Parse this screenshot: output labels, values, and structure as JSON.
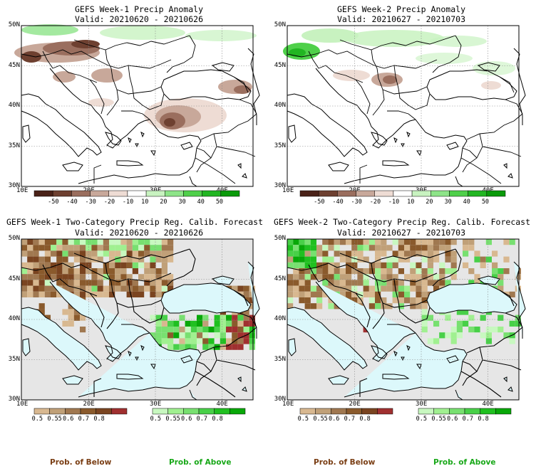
{
  "panels": [
    {
      "line1": "GEFS Week-1 Precip Anomaly",
      "line2": "Valid: 20210620 - 20210626"
    },
    {
      "line1": "GEFS Week-2 Precip Anomaly",
      "line2": "Valid: 20210627 - 20210703"
    },
    {
      "line1": "GEFS Week-1 Two-Category Precip Reg. Calib. Forecast",
      "line2": "Valid: 20210620 - 20210626"
    },
    {
      "line1": "GEFS Week-2 Two-Category Precip Reg. Calib. Forecast",
      "line2": "Valid: 20210627 - 20210703"
    }
  ],
  "lat_labels": [
    "50N",
    "45N",
    "40N",
    "35N",
    "30N"
  ],
  "lon_labels": [
    "10E",
    "20E",
    "30E",
    "40E"
  ],
  "anomaly_colorbar": {
    "labels": [
      "-50",
      "-40",
      "-30",
      "-20",
      "-10",
      "10",
      "20",
      "30",
      "40",
      "50"
    ],
    "colors": [
      "#4a2218",
      "#6e4030",
      "#9a6e5e",
      "#c8a89a",
      "#eedcd4",
      "#ffffff",
      "#c8f2c0",
      "#8de488",
      "#4fd04a",
      "#22b622",
      "#0a9a0a"
    ]
  },
  "below_colorbar": {
    "labels": [
      "0.5",
      "0.55",
      "0.6",
      "0.7",
      "0.8"
    ],
    "colors": [
      "#d8b890",
      "#c0a078",
      "#a07850",
      "#8a5a2c",
      "#7a4420",
      "#a03030"
    ]
  },
  "above_colorbar": {
    "labels": [
      "0.5",
      "0.55",
      "0.6",
      "0.7",
      "0.8"
    ],
    "colors": [
      "#c8f8c0",
      "#a0f090",
      "#78e070",
      "#48d048",
      "#20c020",
      "#08a808"
    ]
  },
  "prob_below_label": "Prob. of Below",
  "prob_above_label": "Prob. of Above",
  "colors": {
    "sea": "#dcf8fb",
    "nodata": "#e6e6e6",
    "below_text": "#7a3e14",
    "above_text": "#18a818"
  }
}
